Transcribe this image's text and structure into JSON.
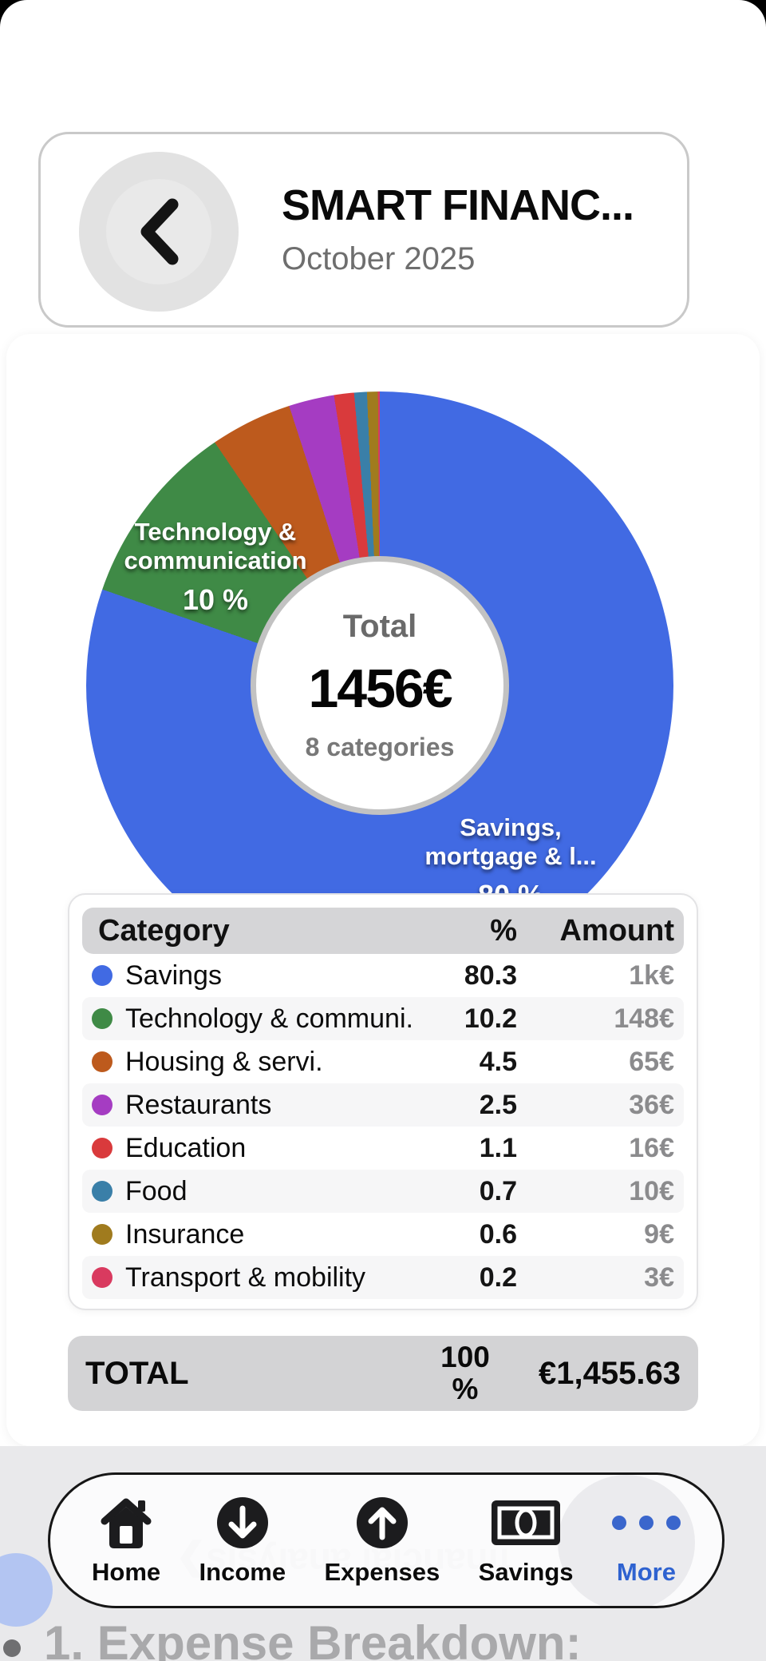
{
  "header": {
    "title": "SMART FINANC...",
    "subtitle": "October 2025",
    "back_icon": "chevron-left"
  },
  "chart_data": {
    "type": "pie",
    "donut": true,
    "center": {
      "label": "Total",
      "value": "1456€",
      "subtitle": "8 categories"
    },
    "series": [
      {
        "name": "Savings",
        "percent": 80.3,
        "amount": "1k€",
        "color": "#416ae3"
      },
      {
        "name": "Technology & communi...",
        "percent": 10.2,
        "amount": "148€",
        "color": "#3f8a46"
      },
      {
        "name": "Housing & servi.",
        "percent": 4.5,
        "amount": "65€",
        "color": "#bd5a1d"
      },
      {
        "name": "Restaurants",
        "percent": 2.5,
        "amount": "36€",
        "color": "#a53cc2"
      },
      {
        "name": "Education",
        "percent": 1.1,
        "amount": "16€",
        "color": "#d93a3c"
      },
      {
        "name": "Food",
        "percent": 0.7,
        "amount": "10€",
        "color": "#3a7fa8"
      },
      {
        "name": "Insurance",
        "percent": 0.6,
        "amount": "9€",
        "color": "#a07b1e"
      },
      {
        "name": "Transport & mobility",
        "percent": 0.2,
        "amount": "3€",
        "color": "#d93a5f"
      }
    ],
    "slice_annotations": [
      {
        "line1": "Technology &",
        "line2": "communication",
        "percent_label": "10 %"
      },
      {
        "line1": "Savings,",
        "line2": "mortgage & l...",
        "percent_label": "80 %"
      }
    ],
    "legend_position": "table-below",
    "start_angle_deg": 0
  },
  "table": {
    "headers": [
      "Category",
      "%",
      "Amount"
    ]
  },
  "total_row": {
    "label": "TOTAL",
    "percent": "100 %",
    "amount": "€1,455.63"
  },
  "nav": {
    "items": [
      {
        "label": "Home",
        "icon": "home"
      },
      {
        "label": "Income",
        "icon": "arrow-down-circle"
      },
      {
        "label": "Expenses",
        "icon": "arrow-up-circle"
      },
      {
        "label": "Savings",
        "icon": "banknote"
      },
      {
        "label": "More",
        "icon": "ellipsis"
      }
    ],
    "active_item": "More",
    "active_color": "#2e62d0"
  },
  "underlay": {
    "reflection_text": "financial analysis❯",
    "section_heading": "1. Expense Breakdown:"
  }
}
